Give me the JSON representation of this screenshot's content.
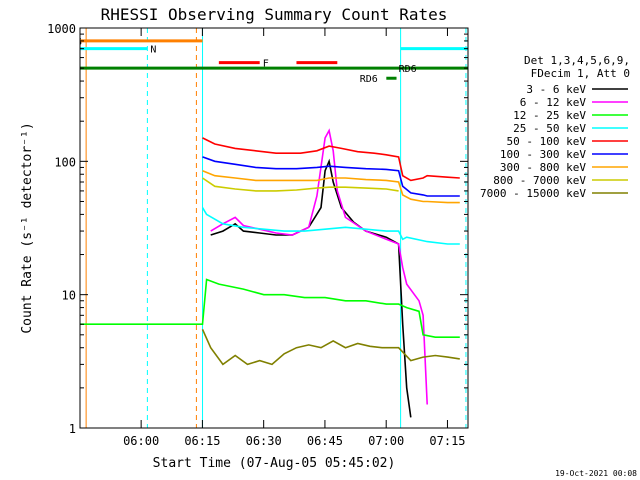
{
  "chart_data": {
    "type": "line",
    "title": "RHESSI Observing Summary Count Rates",
    "xlabel": "Start Time (07-Aug-05 05:45:02)",
    "ylabel": "Count Rate (s⁻¹ detector⁻¹)",
    "x_unit": "minutes after 05:45:02",
    "xlim": [
      0,
      95
    ],
    "ylim": [
      1,
      1000
    ],
    "y_scale": "log",
    "x_ticks": [
      {
        "x": 14.97,
        "label": "06:00"
      },
      {
        "x": 29.97,
        "label": "06:15"
      },
      {
        "x": 44.97,
        "label": "06:30"
      },
      {
        "x": 59.97,
        "label": "06:45"
      },
      {
        "x": 74.97,
        "label": "07:00"
      },
      {
        "x": 89.97,
        "label": "07:15"
      }
    ],
    "y_ticks": [
      {
        "y": 1,
        "label": "1"
      },
      {
        "y": 10,
        "label": "10"
      },
      {
        "y": 100,
        "label": "100"
      },
      {
        "y": 1000,
        "label": "1000"
      }
    ],
    "legend_header": [
      "Det 1,3,4,5,6,9,",
      "FDecim 1, Att 0"
    ],
    "legend_position": "right",
    "series": [
      {
        "name": "3 - 6 keV",
        "color": "#000000",
        "points": [
          [
            32,
            28
          ],
          [
            35,
            30
          ],
          [
            38,
            34
          ],
          [
            40,
            30
          ],
          [
            44,
            29
          ],
          [
            48,
            28
          ],
          [
            52,
            28
          ],
          [
            56,
            32
          ],
          [
            59,
            45
          ],
          [
            60,
            85
          ],
          [
            61,
            100
          ],
          [
            62,
            70
          ],
          [
            64,
            45
          ],
          [
            67,
            35
          ],
          [
            70,
            30
          ],
          [
            75,
            27
          ],
          [
            78,
            24
          ],
          [
            79,
            6
          ],
          [
            80,
            2
          ],
          [
            81,
            1.2
          ]
        ]
      },
      {
        "name": "6 - 12 keV",
        "color": "#ff00ff",
        "points": [
          [
            32,
            30
          ],
          [
            35,
            34
          ],
          [
            38,
            38
          ],
          [
            40,
            33
          ],
          [
            44,
            31
          ],
          [
            48,
            29
          ],
          [
            52,
            28
          ],
          [
            56,
            32
          ],
          [
            58,
            55
          ],
          [
            60,
            150
          ],
          [
            61,
            170
          ],
          [
            62,
            120
          ],
          [
            63,
            60
          ],
          [
            65,
            38
          ],
          [
            70,
            30
          ],
          [
            75,
            26
          ],
          [
            78,
            24
          ],
          [
            79,
            16
          ],
          [
            80,
            12
          ],
          [
            83,
            9
          ],
          [
            84,
            7
          ],
          [
            85,
            1.5
          ]
        ]
      },
      {
        "name": "12 - 25 keV",
        "color": "#00ff00",
        "points": [
          [
            0,
            6
          ],
          [
            30,
            6
          ],
          [
            31,
            13
          ],
          [
            34,
            12
          ],
          [
            40,
            11
          ],
          [
            45,
            10
          ],
          [
            50,
            10
          ],
          [
            55,
            9.5
          ],
          [
            60,
            9.5
          ],
          [
            65,
            9
          ],
          [
            70,
            9
          ],
          [
            75,
            8.5
          ],
          [
            78,
            8.5
          ],
          [
            80,
            8
          ],
          [
            83,
            7.5
          ],
          [
            84,
            5
          ],
          [
            87,
            4.8
          ],
          [
            90,
            4.8
          ],
          [
            93,
            4.8
          ]
        ]
      },
      {
        "name": "25 - 50 keV",
        "color": "#00ffff",
        "points": [
          [
            30,
            45
          ],
          [
            31,
            40
          ],
          [
            35,
            34
          ],
          [
            40,
            32
          ],
          [
            45,
            31
          ],
          [
            50,
            30
          ],
          [
            55,
            30
          ],
          [
            60,
            31
          ],
          [
            65,
            32
          ],
          [
            70,
            31
          ],
          [
            75,
            30
          ],
          [
            78,
            30
          ],
          [
            79,
            26
          ],
          [
            80,
            27
          ],
          [
            85,
            25
          ],
          [
            90,
            24
          ],
          [
            93,
            24
          ]
        ]
      },
      {
        "name": "50 - 100 keV",
        "color": "#ff0000",
        "points": [
          [
            30,
            150
          ],
          [
            33,
            135
          ],
          [
            38,
            125
          ],
          [
            43,
            120
          ],
          [
            48,
            115
          ],
          [
            54,
            115
          ],
          [
            58,
            120
          ],
          [
            61,
            130
          ],
          [
            64,
            125
          ],
          [
            68,
            118
          ],
          [
            72,
            115
          ],
          [
            75,
            112
          ],
          [
            78,
            108
          ],
          [
            79,
            78
          ],
          [
            81,
            72
          ],
          [
            84,
            75
          ],
          [
            85,
            78
          ],
          [
            90,
            76
          ],
          [
            93,
            75
          ]
        ]
      },
      {
        "name": "100 - 300 keV",
        "color": "#0000ff",
        "points": [
          [
            30,
            108
          ],
          [
            33,
            100
          ],
          [
            38,
            95
          ],
          [
            43,
            90
          ],
          [
            48,
            88
          ],
          [
            53,
            88
          ],
          [
            58,
            90
          ],
          [
            61,
            92
          ],
          [
            65,
            90
          ],
          [
            70,
            88
          ],
          [
            75,
            87
          ],
          [
            78,
            85
          ],
          [
            79,
            65
          ],
          [
            81,
            58
          ],
          [
            84,
            56
          ],
          [
            85,
            55
          ],
          [
            90,
            55
          ],
          [
            93,
            55
          ]
        ]
      },
      {
        "name": "300 - 800 keV",
        "color": "#ffa500",
        "points": [
          [
            30,
            85
          ],
          [
            33,
            78
          ],
          [
            38,
            75
          ],
          [
            43,
            72
          ],
          [
            48,
            72
          ],
          [
            53,
            72
          ],
          [
            58,
            72
          ],
          [
            61,
            75
          ],
          [
            65,
            75
          ],
          [
            70,
            73
          ],
          [
            75,
            72
          ],
          [
            78,
            70
          ],
          [
            79,
            56
          ],
          [
            81,
            52
          ],
          [
            84,
            50
          ],
          [
            85,
            50
          ],
          [
            90,
            49
          ],
          [
            93,
            49
          ]
        ]
      },
      {
        "name": "800 - 7000 keV",
        "color": "#cccc00",
        "points": [
          [
            30,
            75
          ],
          [
            33,
            65
          ],
          [
            38,
            62
          ],
          [
            43,
            60
          ],
          [
            48,
            60
          ],
          [
            53,
            61
          ],
          [
            58,
            63
          ],
          [
            61,
            64
          ],
          [
            65,
            64
          ],
          [
            70,
            63
          ],
          [
            75,
            62
          ],
          [
            78,
            60
          ]
        ]
      },
      {
        "name": "7000 - 15000 keV",
        "color": "#808000",
        "points": [
          [
            30,
            5.5
          ],
          [
            32,
            4
          ],
          [
            35,
            3
          ],
          [
            38,
            3.5
          ],
          [
            41,
            3
          ],
          [
            44,
            3.2
          ],
          [
            47,
            3
          ],
          [
            50,
            3.6
          ],
          [
            53,
            4
          ],
          [
            56,
            4.2
          ],
          [
            59,
            4
          ],
          [
            62,
            4.5
          ],
          [
            65,
            4
          ],
          [
            68,
            4.3
          ],
          [
            71,
            4.1
          ],
          [
            74,
            4
          ],
          [
            78,
            4
          ],
          [
            81,
            3.2
          ],
          [
            84,
            3.4
          ],
          [
            87,
            3.5
          ],
          [
            90,
            3.4
          ],
          [
            93,
            3.3
          ]
        ]
      }
    ],
    "flags": [
      {
        "label": "S",
        "color": "#ff8000",
        "x_start": 0,
        "x_end": 30,
        "y": 800
      },
      {
        "label": "N",
        "color": "#00ffff",
        "x_start": 0,
        "x_end": 16.5,
        "y": 700
      },
      {
        "label": "N",
        "color": "#00ffff",
        "x_start": 78.5,
        "x_end": 95,
        "y": 700
      },
      {
        "label": "F",
        "color": "#ff0000",
        "x_start": 34,
        "x_end": 44,
        "y": 550
      },
      {
        "label": "",
        "color": "#ff0000",
        "x_start": 53,
        "x_end": 63,
        "y": 550
      },
      {
        "label": "RD6",
        "color": "#008000",
        "x_start": 0,
        "x_end": 95,
        "y": 500,
        "text_x": 78
      },
      {
        "label": "RD6",
        "color": "#008000",
        "x_start": 75,
        "x_end": 77.5,
        "y": 420,
        "text_x": 68.5
      }
    ],
    "vertical_lines": [
      {
        "x": 1.5,
        "color": "#ff8000",
        "dashed": false
      },
      {
        "x": 16.5,
        "color": "#00ffff",
        "dashed": true
      },
      {
        "x": 28.5,
        "color": "#ff8000",
        "dashed": true
      },
      {
        "x": 30,
        "color": "#00ffff",
        "dashed": false
      },
      {
        "x": 78.5,
        "color": "#00ffff",
        "dashed": false
      },
      {
        "x": 94.5,
        "color": "#00ffff",
        "dashed": true
      }
    ]
  },
  "footer": {
    "timestamp": "19-Oct-2021 00:08"
  }
}
